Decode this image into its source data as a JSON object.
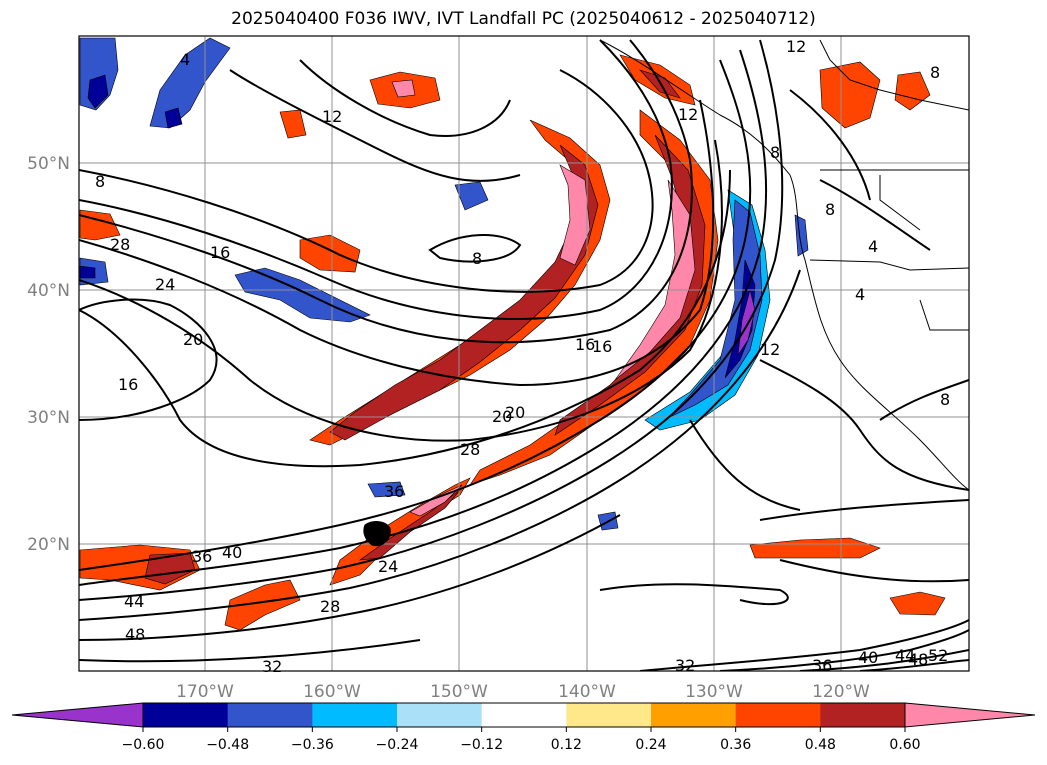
{
  "title": "2025040400 F036 IWV, IVT Landfall PC (2025040612 - 2025040712)",
  "axes": {
    "lat_labels": [
      "50°N",
      "40°N",
      "30°N",
      "20°N"
    ],
    "lon_labels": [
      "170°W",
      "160°W",
      "150°W",
      "140°W",
      "130°W",
      "120°W"
    ],
    "grid": true
  },
  "colorbar": {
    "orientation": "horizontal",
    "extend": "both",
    "ticks": [
      "−0.60",
      "−0.48",
      "−0.36",
      "−0.24",
      "−0.12",
      "0.12",
      "0.24",
      "0.36",
      "0.48",
      "0.60"
    ],
    "colors": [
      "#9933cc",
      "#000099",
      "#3355cc",
      "#00bbff",
      "#aae0f8",
      "#ffffff",
      "#ffe88a",
      "#ffa000",
      "#ff4400",
      "#b22222",
      "#ff88aa"
    ]
  },
  "contour_labels": [
    "4",
    "12",
    "8",
    "12",
    "16",
    "28",
    "24",
    "20",
    "16",
    "8",
    "16",
    "20",
    "28",
    "36",
    "40",
    "44",
    "48",
    "32",
    "28",
    "24",
    "32",
    "36",
    "40",
    "44",
    "48",
    "52",
    "12",
    "8",
    "8",
    "4",
    "4",
    "8",
    "12",
    "16",
    "20",
    "8",
    "36"
  ]
}
